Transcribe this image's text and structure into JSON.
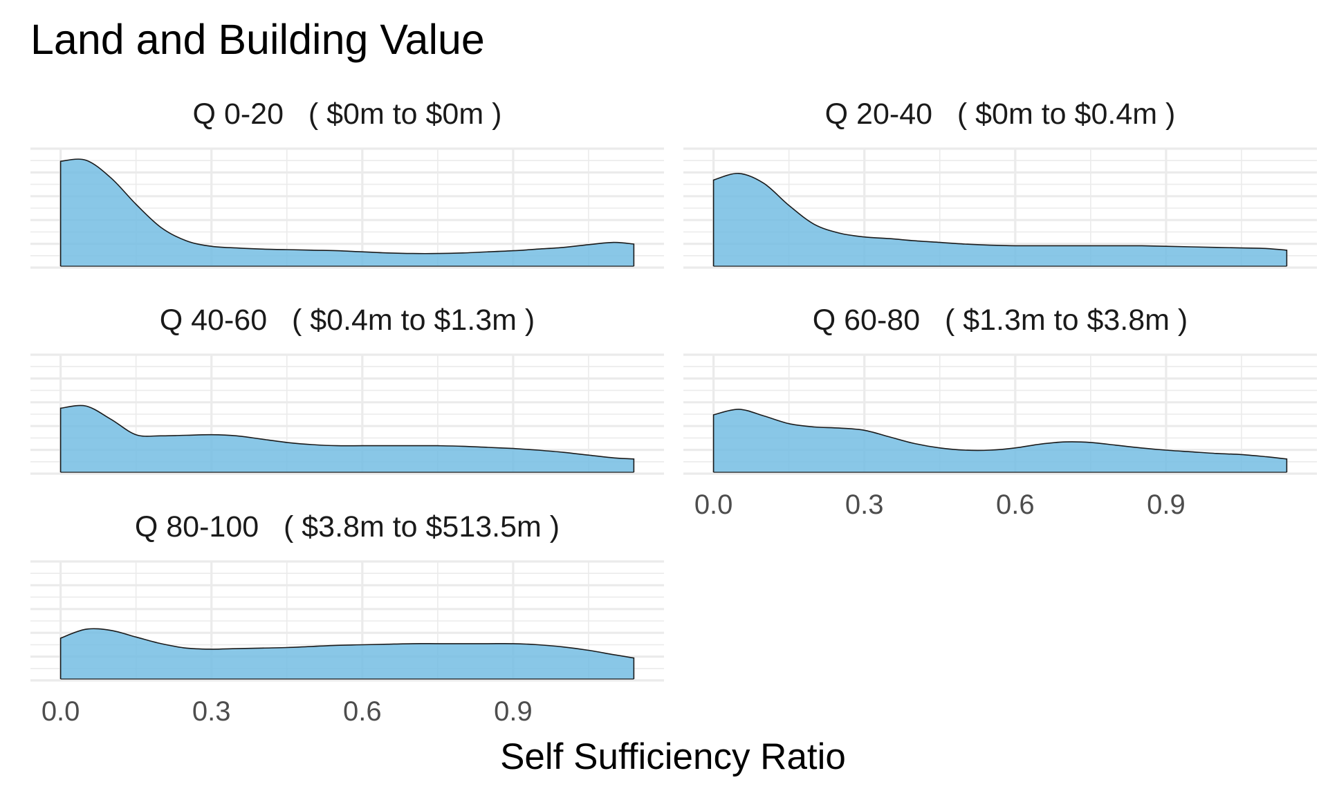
{
  "title": "Land and Building Value",
  "xlabel": "Self Sufficiency Ratio",
  "chart_data": {
    "type": "area",
    "title": "Land and Building Value",
    "xlabel": "Self Sufficiency Ratio",
    "ylabel": "",
    "xlim": [
      -0.06,
      1.2
    ],
    "x_ticks": [
      0.0,
      0.3,
      0.6,
      0.9
    ],
    "x_tick_labels": [
      "0.0",
      "0.3",
      "0.6",
      "0.9"
    ],
    "ylim": [
      0,
      1
    ],
    "grid": true,
    "legend": "none",
    "fill_color": "#74BDE3",
    "line_color": "#1a1a1a",
    "x": [
      0.0,
      0.05,
      0.1,
      0.15,
      0.2,
      0.25,
      0.3,
      0.35,
      0.4,
      0.45,
      0.5,
      0.55,
      0.6,
      0.65,
      0.7,
      0.75,
      0.8,
      0.85,
      0.9,
      0.95,
      1.0,
      1.05,
      1.1,
      1.14
    ],
    "panels": [
      {
        "title": "Q 0-20   ( $0m to $0m )",
        "x_tick_labels_shown": false,
        "values": [
          0.95,
          0.96,
          0.8,
          0.56,
          0.35,
          0.23,
          0.18,
          0.165,
          0.155,
          0.15,
          0.145,
          0.14,
          0.13,
          0.12,
          0.115,
          0.115,
          0.12,
          0.13,
          0.14,
          0.155,
          0.17,
          0.195,
          0.215,
          0.2
        ]
      },
      {
        "title": "Q 20-40   ( $0m to $0.4m )",
        "x_tick_labels_shown": false,
        "values": [
          0.78,
          0.84,
          0.75,
          0.55,
          0.38,
          0.3,
          0.265,
          0.25,
          0.23,
          0.215,
          0.2,
          0.19,
          0.185,
          0.185,
          0.185,
          0.185,
          0.185,
          0.185,
          0.18,
          0.175,
          0.17,
          0.165,
          0.16,
          0.145
        ]
      },
      {
        "title": "Q 40-60   ( $0.4m to $1.3m )",
        "x_tick_labels_shown": false,
        "values": [
          0.58,
          0.6,
          0.48,
          0.34,
          0.33,
          0.335,
          0.34,
          0.33,
          0.3,
          0.27,
          0.25,
          0.24,
          0.24,
          0.24,
          0.24,
          0.24,
          0.235,
          0.225,
          0.215,
          0.2,
          0.18,
          0.155,
          0.13,
          0.12
        ]
      },
      {
        "title": "Q 60-80   ( $1.3m to $3.8m )",
        "x_tick_labels_shown": true,
        "values": [
          0.52,
          0.57,
          0.51,
          0.44,
          0.41,
          0.4,
          0.38,
          0.32,
          0.26,
          0.22,
          0.2,
          0.2,
          0.22,
          0.255,
          0.275,
          0.27,
          0.245,
          0.22,
          0.2,
          0.185,
          0.17,
          0.16,
          0.14,
          0.12
        ]
      },
      {
        "title": "Q 80-100   ( $3.8m to $513.5m )",
        "x_tick_labels_shown": true,
        "values": [
          0.37,
          0.45,
          0.44,
          0.38,
          0.32,
          0.28,
          0.27,
          0.275,
          0.28,
          0.285,
          0.295,
          0.305,
          0.31,
          0.315,
          0.32,
          0.32,
          0.32,
          0.32,
          0.32,
          0.31,
          0.29,
          0.26,
          0.22,
          0.19
        ]
      }
    ]
  }
}
